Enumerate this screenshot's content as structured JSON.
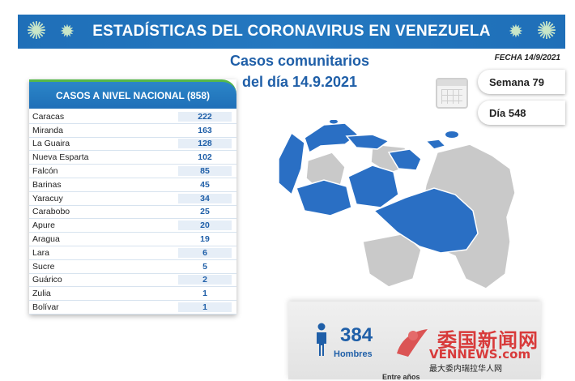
{
  "banner": {
    "title": "ESTADÍSTICAS DEL CORONAVIRUS EN VENEZUELA"
  },
  "subtitle": {
    "line1": "Casos comunitarios",
    "line2": "del día 14.9.2021"
  },
  "fecha": "FECHA 14/9/2021",
  "semana": "Semana 79",
  "dia": "Día 548",
  "table": {
    "header": "CASOS A NIVEL NACIONAL (858)",
    "rows": [
      {
        "name": "Caracas",
        "value": "222"
      },
      {
        "name": "Miranda",
        "value": "163"
      },
      {
        "name": "La Guaira",
        "value": "128"
      },
      {
        "name": "Nueva Esparta",
        "value": "102"
      },
      {
        "name": "Falcón",
        "value": "85"
      },
      {
        "name": "Barinas",
        "value": "45"
      },
      {
        "name": "Yaracuy",
        "value": "34"
      },
      {
        "name": "Carabobo",
        "value": "25"
      },
      {
        "name": "Apure",
        "value": "20"
      },
      {
        "name": "Aragua",
        "value": "19"
      },
      {
        "name": "Lara",
        "value": "6"
      },
      {
        "name": "Sucre",
        "value": "5"
      },
      {
        "name": "Guárico",
        "value": "2"
      },
      {
        "name": "Zulia",
        "value": "1"
      },
      {
        "name": "Bolívar",
        "value": "1"
      }
    ]
  },
  "stats": {
    "hombres_value": "384",
    "hombres_label": "Hombres",
    "entre": "Entre años"
  },
  "watermark": {
    "line1": "委国新闻网",
    "line2": "VENNEWS.com",
    "line3": "最大委内瑞拉华人网"
  },
  "colors": {
    "accent": "#1f6fb8",
    "map_highlight": "#2a6fc4",
    "map_base": "#c9c9c9",
    "banner_border": "#56b848"
  }
}
